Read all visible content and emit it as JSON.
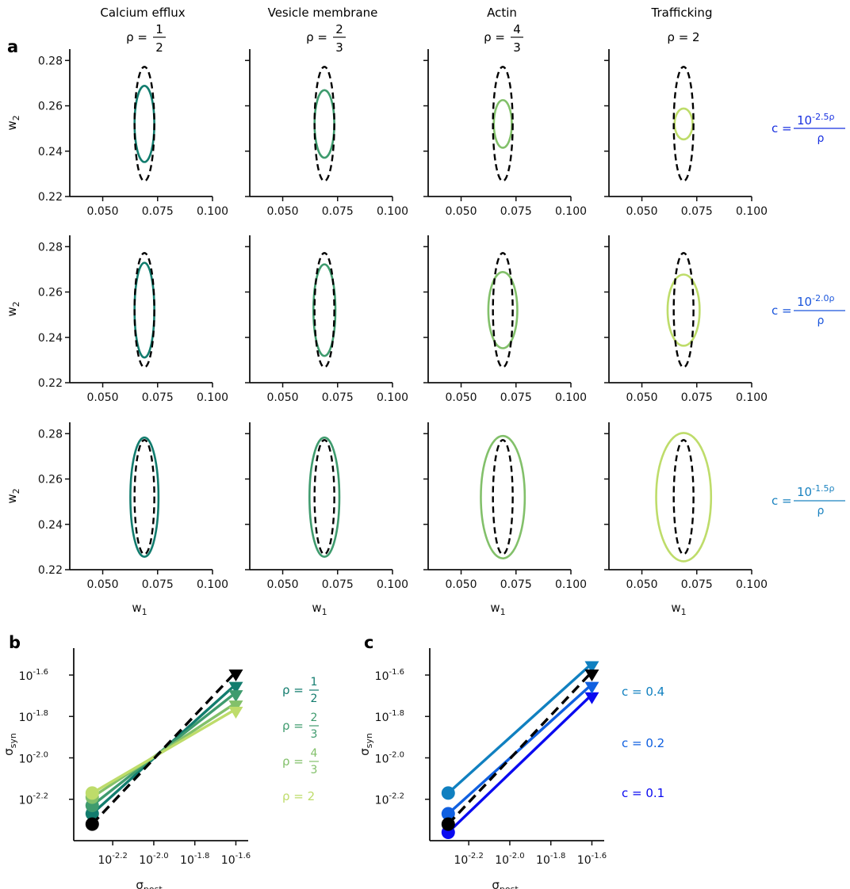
{
  "panel_labels": {
    "a": "a",
    "b": "b",
    "c": "c"
  },
  "colors": {
    "reference": "#000000",
    "columns": [
      "#127c6e",
      "#3f9b6e",
      "#82c06a",
      "#bedc6a"
    ],
    "c_rows": [
      "#1830e0",
      "#1a55dc",
      "#1a82c0"
    ],
    "c_lines": [
      "#0a0af0",
      "#1060e0",
      "#1080c0"
    ]
  },
  "columns": [
    {
      "title": "Calcium efflux",
      "rho_num": "1",
      "rho_den": "2"
    },
    {
      "title": "Vesicle membrane",
      "rho_num": "2",
      "rho_den": "3"
    },
    {
      "title": "Actin",
      "rho_num": "4",
      "rho_den": "3"
    },
    {
      "title": "Trafficking",
      "rho_text": "ρ = 2"
    }
  ],
  "rows": [
    {
      "c_prefix": "c = ",
      "c_exp": "-2.5ρ",
      "c_den": "ρ"
    },
    {
      "c_prefix": "c = ",
      "c_exp": "-2.0ρ",
      "c_den": "ρ"
    },
    {
      "c_prefix": "c = ",
      "c_exp": "-1.5ρ",
      "c_den": "ρ"
    }
  ],
  "chart_data": [
    {
      "panel": "a",
      "type": "scatter",
      "xlabel": "w",
      "xlabel_sub": "1",
      "ylabel": "w",
      "ylabel_sub": "2",
      "xlim": [
        0.035,
        0.1
      ],
      "ylim": [
        0.22,
        0.285
      ],
      "xticks": [
        0.05,
        0.075,
        0.1
      ],
      "xtick_labels": [
        "0.050",
        "0.075",
        "0.100"
      ],
      "yticks": [
        0.22,
        0.24,
        0.26,
        0.28
      ],
      "ytick_labels": [
        "0.22",
        "0.24",
        "0.26",
        "0.28"
      ],
      "reference_ellipse": {
        "cx": 0.069,
        "cy": 0.252,
        "rx": 0.0045,
        "ry": 0.0252,
        "style": "dashed"
      },
      "ellipses": [
        [
          {
            "cx": 0.069,
            "cy": 0.252,
            "rx": 0.0045,
            "ry": 0.0168
          },
          {
            "cx": 0.069,
            "cy": 0.252,
            "rx": 0.0045,
            "ry": 0.0149
          },
          {
            "cx": 0.069,
            "cy": 0.252,
            "rx": 0.0041,
            "ry": 0.0105
          },
          {
            "cx": 0.069,
            "cy": 0.252,
            "rx": 0.0041,
            "ry": 0.0068
          }
        ],
        [
          {
            "cx": 0.069,
            "cy": 0.252,
            "rx": 0.0045,
            "ry": 0.0209
          },
          {
            "cx": 0.069,
            "cy": 0.252,
            "rx": 0.005,
            "ry": 0.0202
          },
          {
            "cx": 0.069,
            "cy": 0.252,
            "rx": 0.0066,
            "ry": 0.0168
          },
          {
            "cx": 0.069,
            "cy": 0.252,
            "rx": 0.0073,
            "ry": 0.0157
          }
        ],
        [
          {
            "cx": 0.069,
            "cy": 0.252,
            "rx": 0.0064,
            "ry": 0.0263
          },
          {
            "cx": 0.069,
            "cy": 0.252,
            "rx": 0.0068,
            "ry": 0.0263
          },
          {
            "cx": 0.069,
            "cy": 0.252,
            "rx": 0.01,
            "ry": 0.027
          },
          {
            "cx": 0.069,
            "cy": 0.252,
            "rx": 0.0125,
            "ry": 0.0283
          }
        ]
      ]
    },
    {
      "panel": "b",
      "type": "line",
      "xlabel": "σ",
      "xlabel_sub": "post",
      "ylabel": "σ",
      "ylabel_sub": "syn",
      "xlim": [
        -2.39,
        -1.54
      ],
      "ylim": [
        -2.4,
        -1.47
      ],
      "xticks": [
        -2.2,
        -2.0,
        -1.8,
        -1.6
      ],
      "xtick_labels": [
        "-2.2",
        "-2.0",
        "-1.8",
        "-1.6"
      ],
      "yticks": [
        -2.2,
        -2.0,
        -1.8,
        -1.6
      ],
      "ytick_labels": [
        "-2.2",
        "-2.0",
        "-1.8",
        "-1.6"
      ],
      "tick_base": "10",
      "reference": {
        "x": [
          -2.3,
          -1.6
        ],
        "y": [
          -2.32,
          -1.6
        ],
        "style": "dashed"
      },
      "series": [
        {
          "x": [
            -2.3,
            -1.6
          ],
          "y": [
            -2.27,
            -1.66
          ]
        },
        {
          "x": [
            -2.3,
            -1.6
          ],
          "y": [
            -2.23,
            -1.7
          ]
        },
        {
          "x": [
            -2.3,
            -1.6
          ],
          "y": [
            -2.19,
            -1.75
          ]
        },
        {
          "x": [
            -2.3,
            -1.6
          ],
          "y": [
            -2.17,
            -1.78
          ]
        }
      ],
      "legend": [
        "ρ = 1/2",
        "ρ = 2/3",
        "ρ = 4/3",
        "ρ = 2"
      ]
    },
    {
      "panel": "c",
      "type": "line",
      "xlabel": "σ",
      "xlabel_sub": "post",
      "ylabel": "σ",
      "ylabel_sub": "syn",
      "xlim": [
        -2.39,
        -1.54
      ],
      "ylim": [
        -2.4,
        -1.47
      ],
      "xticks": [
        -2.2,
        -2.0,
        -1.8,
        -1.6
      ],
      "xtick_labels": [
        "-2.2",
        "-2.0",
        "-1.8",
        "-1.6"
      ],
      "yticks": [
        -2.2,
        -2.0,
        -1.8,
        -1.6
      ],
      "ytick_labels": [
        "-2.2",
        "-2.0",
        "-1.8",
        "-1.6"
      ],
      "tick_base": "10",
      "reference": {
        "x": [
          -2.3,
          -1.6
        ],
        "y": [
          -2.32,
          -1.6
        ],
        "style": "dashed"
      },
      "series": [
        {
          "x": [
            -2.3,
            -1.6
          ],
          "y": [
            -2.36,
            -1.71
          ]
        },
        {
          "x": [
            -2.3,
            -1.6
          ],
          "y": [
            -2.27,
            -1.66
          ]
        },
        {
          "x": [
            -2.3,
            -1.6
          ],
          "y": [
            -2.17,
            -1.56
          ]
        }
      ],
      "legend": [
        "c = 0.1",
        "c = 0.2",
        "c = 0.4"
      ]
    }
  ]
}
